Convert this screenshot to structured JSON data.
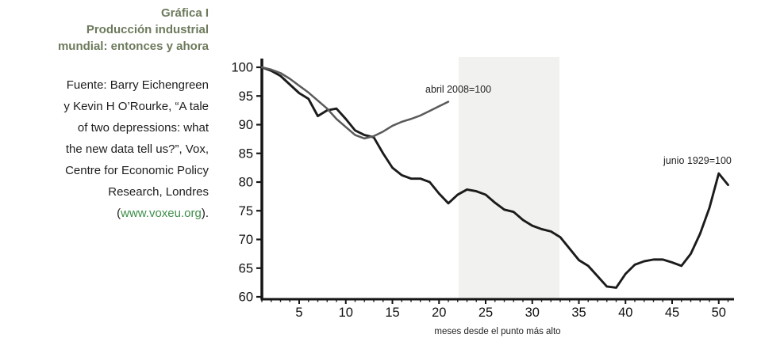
{
  "figure": {
    "heading_lines": [
      "Gráfica I",
      "Producción industrial",
      "mundial: entonces y ahora"
    ],
    "source_lines": [
      "Fuente: Barry Eichengreen",
      "y Kevin H O’Rourke, “A tale",
      "of two depressions: what",
      "the new data tell us?”, Vox,",
      "Centre for Economic Policy",
      "Research, Londres"
    ],
    "source_link": {
      "prefix": "(",
      "url": "www.voxeu.org",
      "suffix": ")."
    }
  },
  "chart_data": {
    "type": "line",
    "title": "Producción industrial mundial: entonces y ahora",
    "xlabel": "meses desde el punto más alto",
    "ylabel": "",
    "xlim": [
      1,
      51
    ],
    "ylim": [
      60,
      100
    ],
    "y_ticks": [
      100,
      95,
      90,
      85,
      80,
      75,
      70,
      65,
      60
    ],
    "x_ticks": [
      5,
      10,
      15,
      20,
      25,
      30,
      35,
      40,
      45,
      50
    ],
    "grid": false,
    "legend_position": "inline-annotations",
    "annotations": [
      {
        "text": "abril 2008=100",
        "x": 18.5,
        "y": 96
      },
      {
        "text": "junio 1929=100",
        "x": 43.5,
        "y": 84
      }
    ],
    "series": [
      {
        "id": "1929",
        "name": "junio 1929=100",
        "color": "#1b1b1b",
        "start_month": 1,
        "values": [
          100,
          99.4,
          98.5,
          97,
          95.5,
          94.5,
          91.5,
          92.5,
          92.8,
          91,
          89,
          88.2,
          87.8,
          85,
          82.5,
          81.2,
          80.6,
          80.6,
          80,
          78,
          76.3,
          77.8,
          78.7,
          78.4,
          77.8,
          76.4,
          75.2,
          74.8,
          73.4,
          72.4,
          71.8,
          71.4,
          70.4,
          68.4,
          66.4,
          65.4,
          63.6,
          61.8,
          61.6,
          64,
          65.6,
          66.2,
          66.5,
          66.5,
          66,
          65.4,
          67.5,
          71,
          75.5,
          81.5,
          79.5
        ]
      },
      {
        "id": "2008",
        "name": "abril 2008=100",
        "color": "#5a5a5a",
        "start_month": 1,
        "values": [
          100,
          99.6,
          99,
          98,
          96.8,
          95.6,
          94.2,
          92.8,
          91,
          89.6,
          88.2,
          87.6,
          88,
          88.8,
          89.8,
          90.5,
          91,
          91.6,
          92.4,
          93.2,
          94
        ]
      }
    ]
  }
}
